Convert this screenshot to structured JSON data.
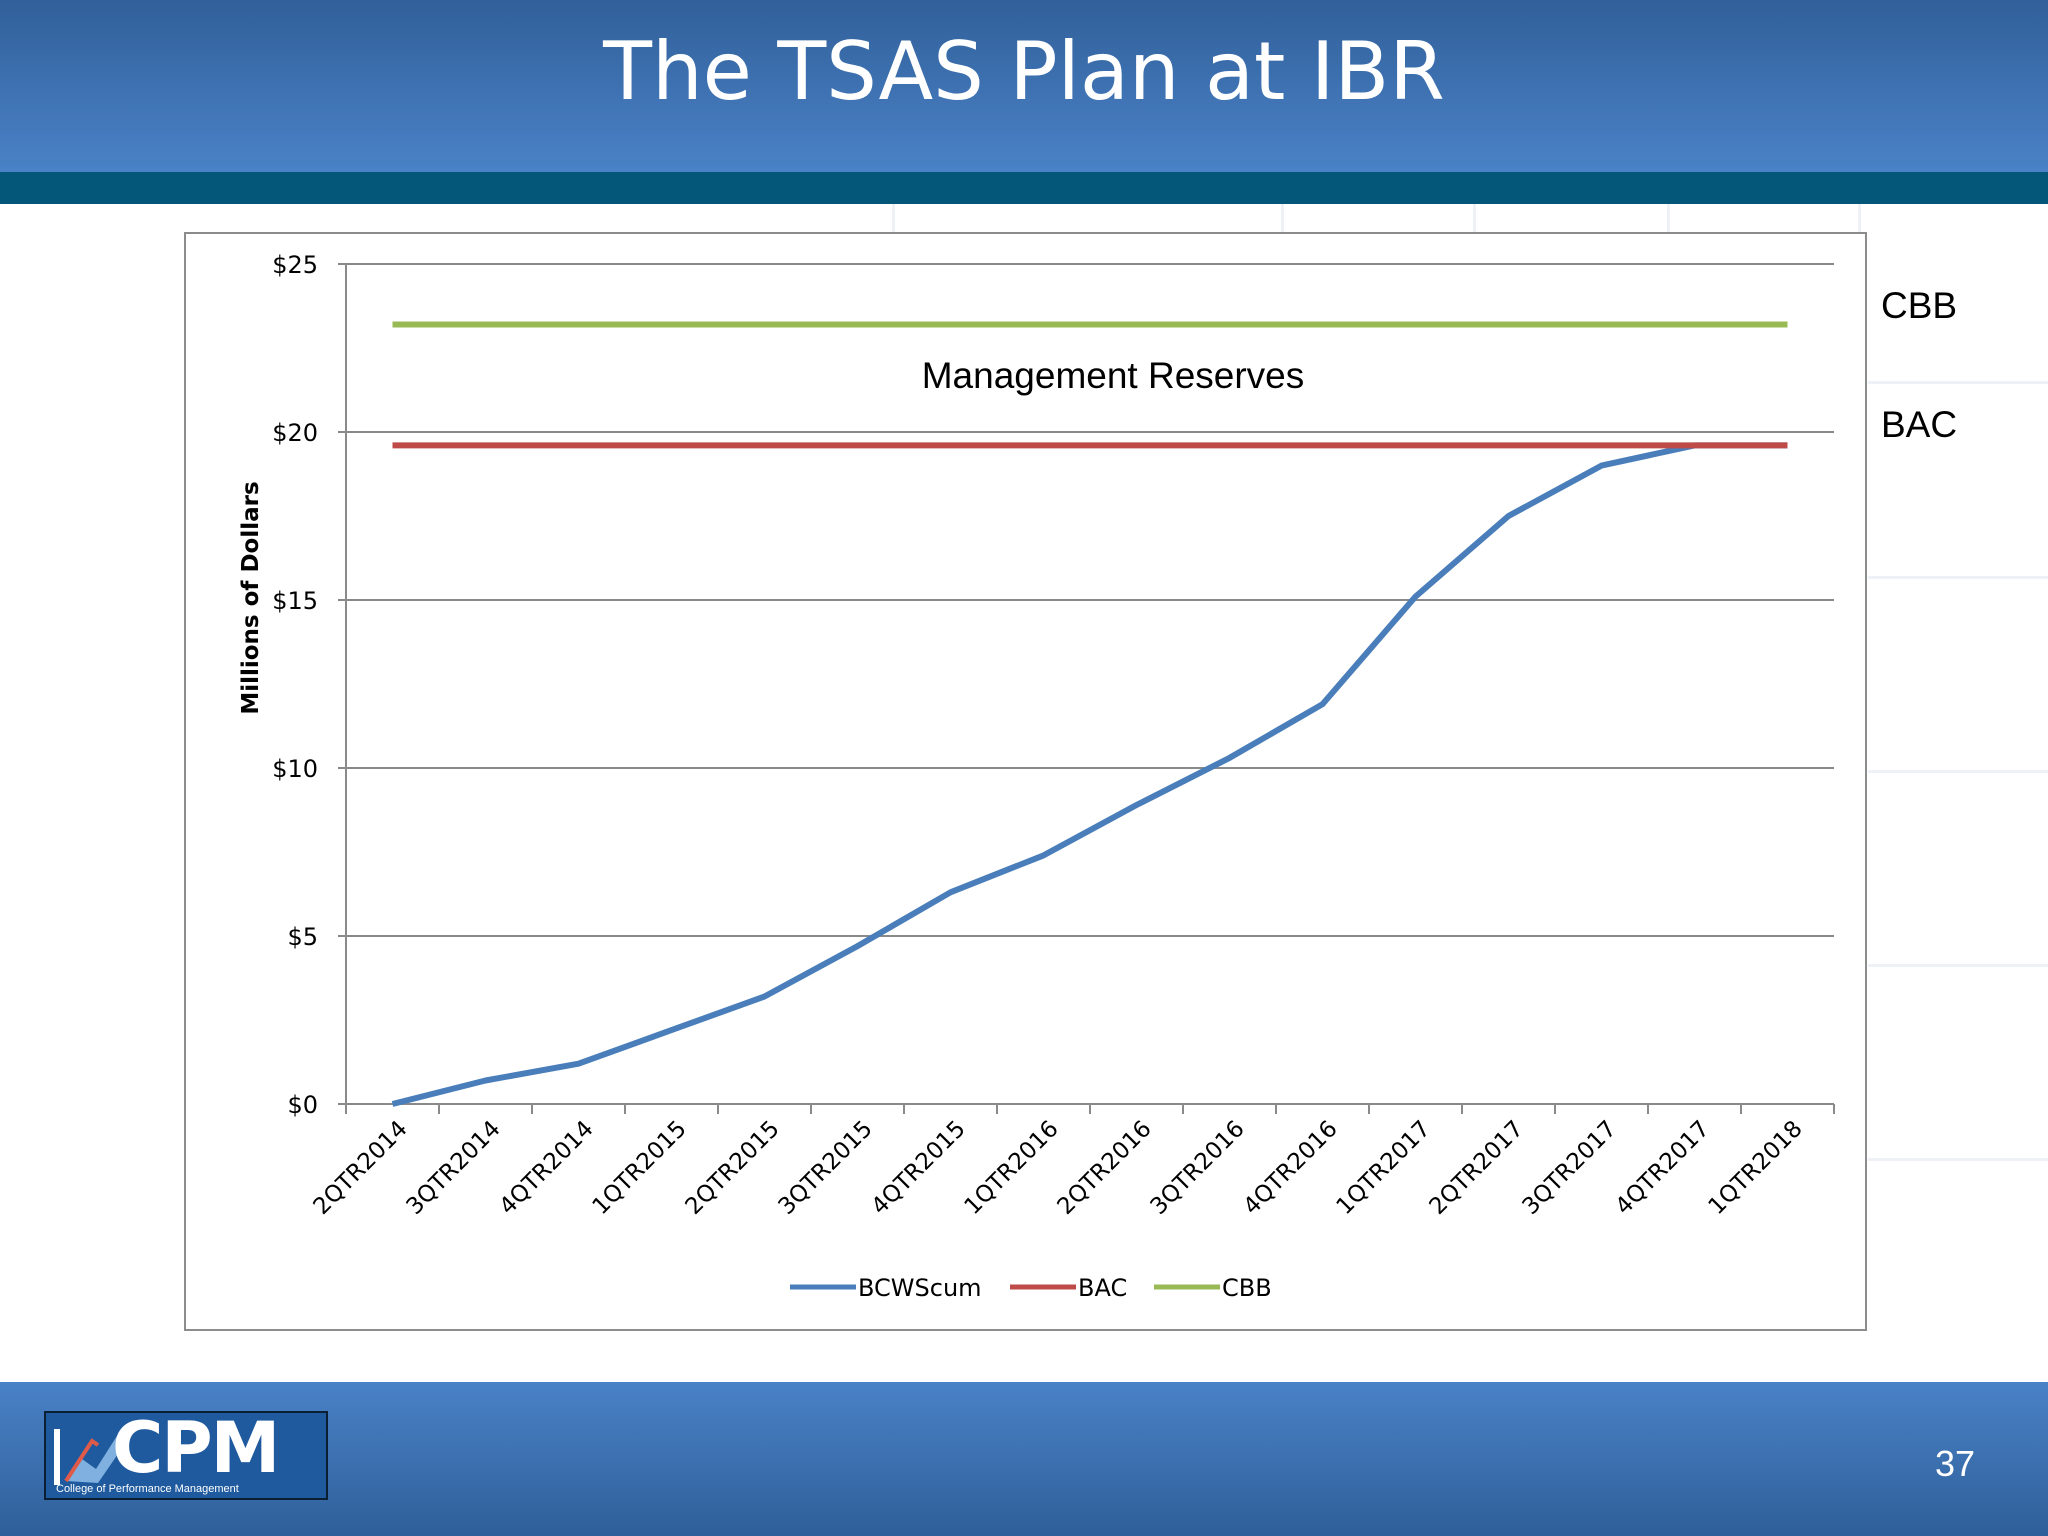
{
  "slide": {
    "title": "The TSAS Plan at IBR",
    "page_number": "37",
    "side_labels": {
      "cbb": "CBB",
      "bac": "BAC"
    },
    "logo": {
      "text": "CPM",
      "subtext": "College of Performance Management"
    }
  },
  "colors": {
    "header": "#3f74b8",
    "header_band": "#05577a",
    "bcws": "#4a7ebb",
    "bac": "#be4b48",
    "cbb": "#98b954"
  },
  "chart_data": {
    "type": "line",
    "categories": [
      "2QTR2014",
      "3QTR2014",
      "4QTR2014",
      "1QTR2015",
      "2QTR2015",
      "3QTR2015",
      "4QTR2015",
      "1QTR2016",
      "2QTR2016",
      "3QTR2016",
      "4QTR2016",
      "1QTR2017",
      "2QTR2017",
      "3QTR2017",
      "4QTR2017",
      "1QTR2018"
    ],
    "series": [
      {
        "name": "BCWScum",
        "values": [
          0.0,
          0.7,
          1.2,
          2.2,
          3.2,
          4.7,
          6.3,
          7.4,
          8.9,
          10.3,
          11.9,
          15.1,
          17.5,
          19.0,
          19.6,
          19.6
        ]
      },
      {
        "name": "BAC",
        "values": [
          19.6,
          19.6,
          19.6,
          19.6,
          19.6,
          19.6,
          19.6,
          19.6,
          19.6,
          19.6,
          19.6,
          19.6,
          19.6,
          19.6,
          19.6,
          19.6
        ]
      },
      {
        "name": "CBB",
        "values": [
          23.2,
          23.2,
          23.2,
          23.2,
          23.2,
          23.2,
          23.2,
          23.2,
          23.2,
          23.2,
          23.2,
          23.2,
          23.2,
          23.2,
          23.2,
          23.2
        ]
      }
    ],
    "ylabel": "Millions of Dollars",
    "xlabel": "",
    "ylim": [
      0,
      25
    ],
    "yticks": [
      0,
      5,
      10,
      15,
      20,
      25
    ],
    "ytick_labels": [
      "$0",
      "$5",
      "$10",
      "$15",
      "$20",
      "$25"
    ],
    "annotation": "Management Reserves",
    "grid": true,
    "legend_position": "bottom"
  }
}
